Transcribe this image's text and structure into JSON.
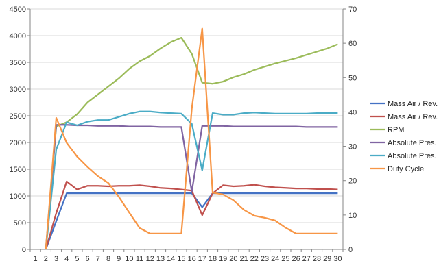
{
  "chart_data": {
    "type": "line",
    "title": "",
    "xlabel": "",
    "ylabel": "",
    "x": [
      1,
      2,
      3,
      4,
      5,
      6,
      7,
      8,
      9,
      10,
      11,
      12,
      13,
      14,
      15,
      16,
      17,
      18,
      19,
      20,
      21,
      22,
      23,
      24,
      25,
      26,
      27,
      28,
      29,
      30
    ],
    "ylim_left": [
      0,
      4500
    ],
    "yticks_left": [
      0,
      500,
      1000,
      1500,
      2000,
      2500,
      3000,
      3500,
      4000,
      4500
    ],
    "ylim_right": [
      0,
      70
    ],
    "yticks_right": [
      0,
      10,
      20,
      30,
      40,
      50,
      60,
      70
    ],
    "grid": "horizontal",
    "legend_position": "right",
    "series": [
      {
        "name": "Mass Air / Rev.",
        "color": "#4472C4",
        "axis": "left",
        "x": [
          2,
          3,
          4,
          5,
          6,
          7,
          8,
          9,
          10,
          11,
          12,
          13,
          14,
          15,
          16,
          17,
          18,
          19,
          20,
          21,
          22,
          23,
          24,
          25,
          26,
          27,
          28,
          29,
          30
        ],
        "values": [
          0,
          530,
          1050,
          1050,
          1050,
          1050,
          1050,
          1050,
          1050,
          1050,
          1050,
          1050,
          1050,
          1050,
          1050,
          790,
          1050,
          1050,
          1050,
          1050,
          1050,
          1050,
          1050,
          1050,
          1050,
          1050,
          1050,
          1050,
          1050
        ]
      },
      {
        "name": "Mass Air / Rev.",
        "color": "#C0504D",
        "axis": "left",
        "x": [
          2,
          3,
          4,
          5,
          6,
          7,
          8,
          9,
          10,
          11,
          12,
          13,
          14,
          15,
          16,
          17,
          18,
          19,
          20,
          21,
          22,
          23,
          24,
          25,
          26,
          27,
          28,
          29,
          30
        ],
        "values": [
          0,
          680,
          1270,
          1120,
          1190,
          1190,
          1180,
          1190,
          1190,
          1200,
          1180,
          1150,
          1140,
          1120,
          1100,
          640,
          1050,
          1200,
          1180,
          1190,
          1210,
          1180,
          1160,
          1150,
          1140,
          1140,
          1130,
          1130,
          1120
        ]
      },
      {
        "name": "RPM",
        "color": "#9BBB59",
        "axis": "left",
        "x": [
          2,
          3,
          4,
          5,
          6,
          7,
          8,
          9,
          10,
          11,
          12,
          13,
          14,
          15,
          16,
          17,
          18,
          19,
          20,
          21,
          22,
          23,
          24,
          25,
          26,
          27,
          28,
          29,
          30
        ],
        "values": [
          0,
          2300,
          2380,
          2530,
          2750,
          2900,
          3050,
          3200,
          3380,
          3520,
          3620,
          3760,
          3880,
          3960,
          3660,
          3120,
          3100,
          3140,
          3220,
          3280,
          3360,
          3420,
          3480,
          3530,
          3580,
          3640,
          3700,
          3760,
          3840
        ]
      },
      {
        "name": "Absolute Pres.",
        "color": "#8064A2",
        "axis": "left",
        "x": [
          2,
          3,
          4,
          5,
          6,
          7,
          8,
          9,
          10,
          11,
          12,
          13,
          14,
          15,
          16,
          17,
          18,
          19,
          20,
          21,
          22,
          23,
          24,
          25,
          26,
          27,
          28,
          29,
          30
        ],
        "values": [
          0,
          2330,
          2330,
          2320,
          2320,
          2310,
          2310,
          2310,
          2300,
          2300,
          2300,
          2290,
          2290,
          2290,
          1080,
          2310,
          2310,
          2310,
          2300,
          2300,
          2300,
          2300,
          2300,
          2300,
          2300,
          2290,
          2290,
          2290,
          2290
        ]
      },
      {
        "name": "Absolute Pres.",
        "color": "#4BACC6",
        "axis": "left",
        "x": [
          2,
          3,
          4,
          5,
          6,
          7,
          8,
          9,
          10,
          11,
          12,
          13,
          14,
          15,
          16,
          17,
          18,
          19,
          20,
          21,
          22,
          23,
          24,
          25,
          26,
          27,
          28,
          29,
          30
        ],
        "values": [
          0,
          1870,
          2380,
          2320,
          2390,
          2420,
          2420,
          2480,
          2540,
          2580,
          2580,
          2560,
          2550,
          2540,
          2350,
          1480,
          2550,
          2520,
          2520,
          2550,
          2560,
          2550,
          2540,
          2540,
          2540,
          2540,
          2550,
          2550,
          2550
        ]
      },
      {
        "name": "Duty Cycle",
        "color": "#F79646",
        "axis": "right",
        "x": [
          2,
          3,
          4,
          5,
          6,
          7,
          8,
          9,
          10,
          11,
          12,
          13,
          14,
          15,
          16,
          17,
          18,
          19,
          20,
          21,
          22,
          23,
          24,
          25,
          26,
          27,
          28,
          29,
          30
        ],
        "values": [
          0,
          38.3,
          31,
          27,
          24,
          21.3,
          19.3,
          15.3,
          10.7,
          6.2,
          4.6,
          4.6,
          4.6,
          4.6,
          40.9,
          64.3,
          16.5,
          16,
          14.3,
          11.5,
          9.8,
          9.2,
          8.4,
          6.3,
          4.6,
          4.6,
          4.6,
          4.6,
          4.6
        ]
      }
    ]
  }
}
